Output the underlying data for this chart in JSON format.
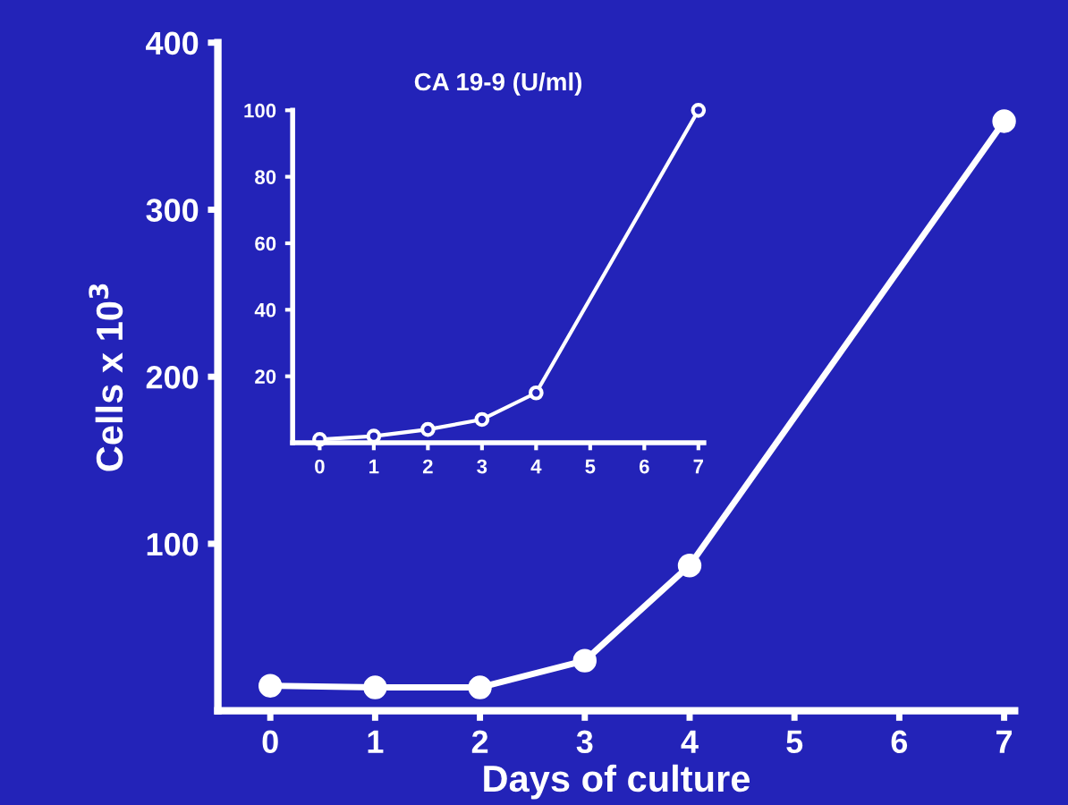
{
  "chart_data": [
    {
      "type": "line",
      "xlabel": "Days of culture",
      "ylabel": "Cells x 10$^{3}$",
      "x": [
        0,
        1,
        2,
        3,
        4,
        7
      ],
      "series": [
        {
          "color": "#ffffff",
          "values": [
            15,
            14,
            14,
            30,
            87,
            353
          ]
        }
      ],
      "xlim": [
        -0.5,
        7.1
      ],
      "ylim": [
        0,
        400
      ],
      "xticks": [
        0,
        1,
        2,
        3,
        4,
        5,
        6,
        7
      ],
      "yticks": [
        100,
        200,
        300,
        400
      ],
      "marker": "circle",
      "line_style": "solid",
      "grid": false,
      "legend": false
    },
    {
      "type": "line",
      "title": "CA 19-9 (U/ml)",
      "x": [
        0,
        1,
        2,
        3,
        4,
        7
      ],
      "series": [
        {
          "color": "#ffffff",
          "values": [
            1,
            2,
            4,
            7,
            15,
            100
          ]
        }
      ],
      "xlim": [
        -0.5,
        7.1
      ],
      "ylim": [
        0,
        100
      ],
      "xticks": [
        0,
        1,
        2,
        3,
        4,
        5,
        6,
        7
      ],
      "yticks": [
        20,
        40,
        60,
        80,
        100
      ],
      "marker": "circle",
      "line_style": "solid",
      "grid": false,
      "legend": false
    }
  ]
}
